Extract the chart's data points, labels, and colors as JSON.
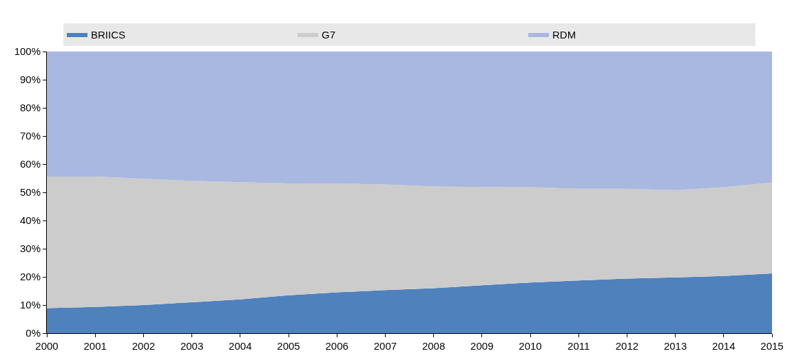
{
  "chart_data": {
    "type": "area",
    "stacked": true,
    "legend": "top",
    "x": [
      2000,
      2001,
      2002,
      2003,
      2004,
      2005,
      2006,
      2007,
      2008,
      2009,
      2010,
      2011,
      2012,
      2013,
      2014,
      2015
    ],
    "xlim": [
      2000,
      2015
    ],
    "xticks": [
      2000,
      2001,
      2002,
      2003,
      2004,
      2005,
      2006,
      2007,
      2008,
      2009,
      2010,
      2011,
      2012,
      2013,
      2014,
      2015
    ],
    "ylim": [
      0,
      100
    ],
    "yticks": [
      {
        "value": 0,
        "label": "0%"
      },
      {
        "value": 10,
        "label": "10%"
      },
      {
        "value": 20,
        "label": "20%"
      },
      {
        "value": 30,
        "label": "30%"
      },
      {
        "value": 40,
        "label": "40%"
      },
      {
        "value": 50,
        "label": "50%"
      },
      {
        "value": 60,
        "label": "60%"
      },
      {
        "value": 70,
        "label": "70%"
      },
      {
        "value": 80,
        "label": "80%"
      },
      {
        "value": 90,
        "label": "90%"
      },
      {
        "value": 100,
        "label": "100%"
      }
    ],
    "series": [
      {
        "name": "BRIICS",
        "color": "#4f81bd",
        "values": [
          8.9,
          9.3,
          10,
          11,
          12,
          13.5,
          14.5,
          15.3,
          16,
          17,
          18,
          18.7,
          19.4,
          19.8,
          20.3,
          21.2
        ]
      },
      {
        "name": "G7",
        "color": "#cccccc",
        "values": [
          46.7,
          46.3,
          44.8,
          43.1,
          41.6,
          39.7,
          38.6,
          37.5,
          36.1,
          34.9,
          33.8,
          32.6,
          31.9,
          31,
          31.5,
          32.3
        ]
      },
      {
        "name": "RDM",
        "color": "#a8b8e0",
        "values": [
          44.4,
          44.4,
          45.2,
          45.9,
          46.4,
          46.8,
          46.9,
          47.2,
          47.9,
          48.1,
          48.2,
          48.7,
          48.7,
          49.2,
          48.2,
          46.5
        ]
      }
    ]
  }
}
